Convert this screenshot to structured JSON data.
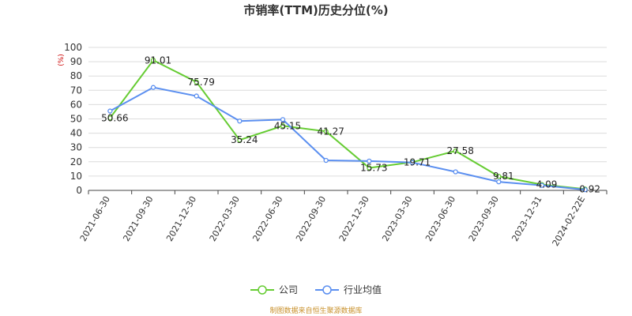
{
  "page": {
    "title": "市销率(TTM)历史分位(%)",
    "source_note": "制图数据来自恒生聚源数据库"
  },
  "chart_data": {
    "type": "line",
    "title": "市销率(TTM)历史分位(%)",
    "ylabel": "(%)",
    "xlabel": "",
    "ylim": [
      0,
      100
    ],
    "yticks": [
      0,
      10,
      20,
      30,
      40,
      50,
      60,
      70,
      80,
      90,
      100
    ],
    "grid": true,
    "legend_position": "bottom",
    "categories": [
      "2021-06-30",
      "2021-09-30",
      "2021-12-30",
      "2022-03-30",
      "2022-06-30",
      "2022-09-30",
      "2022-12-30",
      "2023-03-30",
      "2023-06-30",
      "2023-09-30",
      "2023-12-31",
      "2024-02-22E"
    ],
    "series": [
      {
        "name": "公司",
        "color": "#66cc33",
        "values": [
          50.66,
          91.01,
          75.79,
          35.24,
          45.15,
          41.27,
          15.73,
          19.71,
          27.58,
          9.81,
          4.09,
          0.92
        ],
        "labels": [
          "50.66",
          "91.01",
          "75.79",
          "35.24",
          "45.15",
          "41.27",
          "15.73",
          "19.71",
          "27.58",
          "9.81",
          "4.09",
          "0.92"
        ]
      },
      {
        "name": "行业均值",
        "color": "#5b8ff0",
        "values": [
          55.5,
          72,
          66,
          48.5,
          49.5,
          21,
          20.5,
          19.5,
          13,
          6,
          3.5,
          0.5
        ]
      }
    ]
  }
}
